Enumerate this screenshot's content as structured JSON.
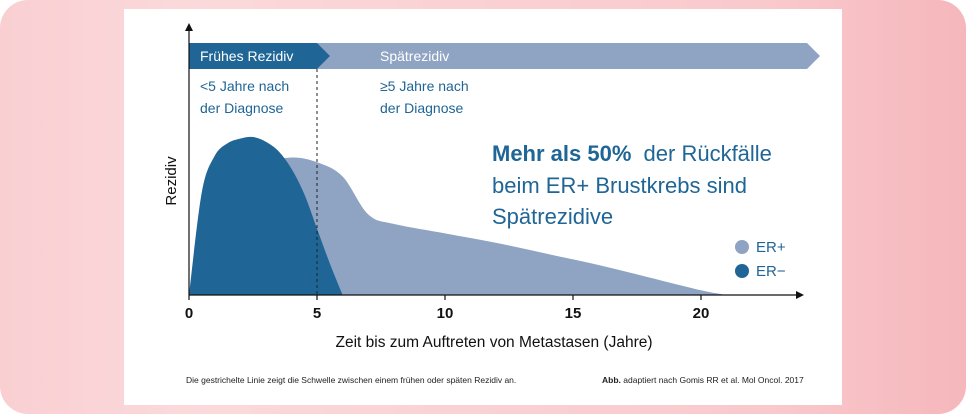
{
  "chart_data": {
    "type": "area",
    "xlabel": "Zeit bis zum Auftreten von Metastasen (Jahre)",
    "ylabel": "Rezidiv",
    "xlim": [
      0,
      24
    ],
    "ylim": [
      0,
      1
    ],
    "x_ticks": [
      0,
      5,
      10,
      15,
      20
    ],
    "threshold_x": 5,
    "series": [
      {
        "name": "ER+",
        "color": "#8fa3c3",
        "x": [
          0,
          1,
          2,
          3,
          4,
          5,
          6,
          7,
          8,
          10,
          12,
          14,
          16,
          18,
          20,
          21
        ],
        "values": [
          0,
          0.25,
          0.62,
          0.82,
          0.87,
          0.84,
          0.75,
          0.51,
          0.45,
          0.39,
          0.33,
          0.26,
          0.19,
          0.11,
          0.03,
          0
        ]
      },
      {
        "name": "ER−",
        "color": "#1f6595",
        "x": [
          0,
          0.5,
          1,
          1.5,
          2,
          2.5,
          3,
          3.5,
          4,
          4.5,
          5,
          5.5,
          6
        ],
        "values": [
          0,
          0.65,
          0.88,
          0.96,
          0.99,
          1.0,
          0.97,
          0.91,
          0.8,
          0.64,
          0.42,
          0.2,
          0
        ]
      }
    ],
    "phases": [
      {
        "label": "Frühes Rezidiv",
        "sub_1": "<5 Jahre nach",
        "sub_2": "der Diagnose",
        "color": "#1f6595"
      },
      {
        "label": "Spätrezidiv",
        "sub_1": "≥5 Jahre nach",
        "sub_2": "der Diagnose",
        "color": "#8fa3c3"
      }
    ],
    "annotation": {
      "bold": "Mehr als 50%",
      "rest_1": "der Rückfälle",
      "line_2": "beim ER+ Brustkrebs sind",
      "line_3": "Spätrezidive"
    },
    "legend_position": "right",
    "footnote_left": "Die gestrichelte Linie zeigt die Schwelle zwischen einem frühen oder späten Rezidiv an.",
    "footnote_right_bold": "Abb.",
    "footnote_right": "adaptiert nach Gomis RR et al. Mol Oncol. 2017"
  }
}
